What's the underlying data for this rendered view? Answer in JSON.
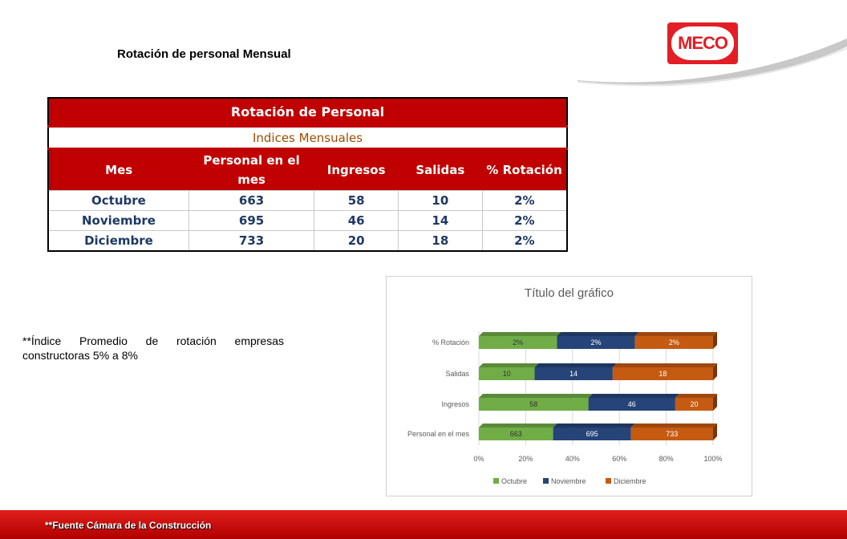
{
  "page": {
    "title": "Rotación de personal Mensual",
    "logo_text": "MECO",
    "note": "**Índice Promedio de rotación empresas constructoras 5% a 8%",
    "footer": "**Fuente Cámara de la Construcción"
  },
  "table": {
    "title": "Rotación de Personal",
    "subtitle": "Indices Mensuales",
    "headers": [
      "Mes",
      "Personal en el mes",
      "Ingresos",
      "Salidas",
      "% Rotación"
    ],
    "rows": [
      [
        "Octubre",
        "663",
        "58",
        "10",
        "2%"
      ],
      [
        "Noviembre",
        "695",
        "46",
        "14",
        "2%"
      ],
      [
        "Diciembre",
        "733",
        "20",
        "18",
        "2%"
      ]
    ]
  },
  "chart_data": {
    "type": "bar",
    "orientation": "horizontal",
    "stacked": "100%",
    "title": "Título del gráfico",
    "categories": [
      "% Rotación",
      "Salidas",
      "Ingresos",
      "Personal en el mes"
    ],
    "series": [
      {
        "name": "Octubre",
        "color": "#70ad47",
        "values": [
          2,
          10,
          58,
          663
        ],
        "labels": [
          "2%",
          "10",
          "58",
          "663"
        ]
      },
      {
        "name": "Noviembre",
        "color": "#264478",
        "values": [
          2,
          14,
          46,
          695
        ],
        "labels": [
          "2%",
          "14",
          "46",
          "695"
        ]
      },
      {
        "name": "Diciembre",
        "color": "#c55a11",
        "values": [
          2,
          18,
          20,
          733
        ],
        "labels": [
          "2%",
          "18",
          "20",
          "733"
        ]
      }
    ],
    "x_ticks": [
      "0%",
      "20%",
      "40%",
      "60%",
      "80%",
      "100%"
    ],
    "xlim": [
      0,
      100
    ],
    "legend_position": "bottom",
    "grid": true
  },
  "colors": {
    "brand_red": "#c00000",
    "header_text": "#ffffff",
    "row_text": "#1f3864",
    "subtitle_text": "#9c4d00"
  }
}
